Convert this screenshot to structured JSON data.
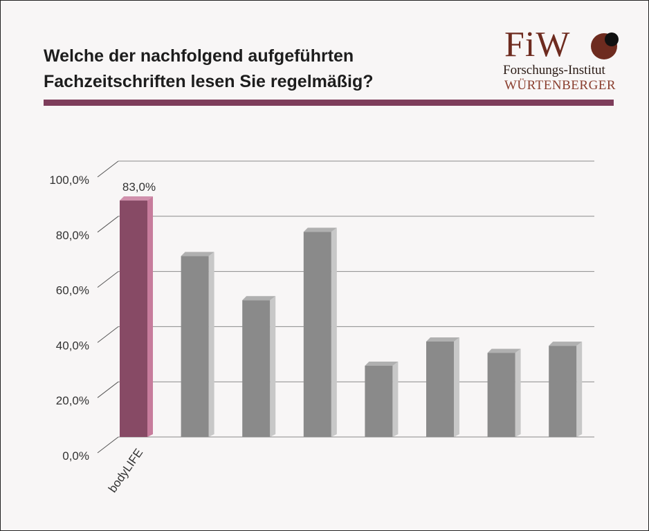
{
  "header": {
    "title_line1": "Welche der nachfolgend aufgeführten",
    "title_line2": "Fachzeitschriften lesen Sie regelmäßig?"
  },
  "logo": {
    "mark": "FiW",
    "line1": "Forschungs-Institut",
    "line2": "WÜRTENBERGER"
  },
  "colors": {
    "accent": "#7e3d5b",
    "highlight_bar": "#874a65",
    "other_bar": "#8a8a8a"
  },
  "chart_data": {
    "type": "bar",
    "title": "Welche der nachfolgend aufgeführten Fachzeitschriften lesen Sie regelmäßig?",
    "categories": [
      "bodyLIFE",
      "",
      "",
      "",
      "",
      "",
      "",
      ""
    ],
    "values": [
      83.0,
      63.5,
      48.0,
      72.0,
      25.0,
      33.5,
      29.5,
      32.0
    ],
    "data_labels": [
      "83,0%",
      "",
      "",
      "",
      "",
      "",
      "",
      ""
    ],
    "yticks": [
      "0,0%",
      "20,0%",
      "40,0%",
      "60,0%",
      "80,0%",
      "100,0%"
    ],
    "ylim": [
      0,
      100
    ],
    "grid": true,
    "xlabel": "",
    "ylabel": ""
  }
}
